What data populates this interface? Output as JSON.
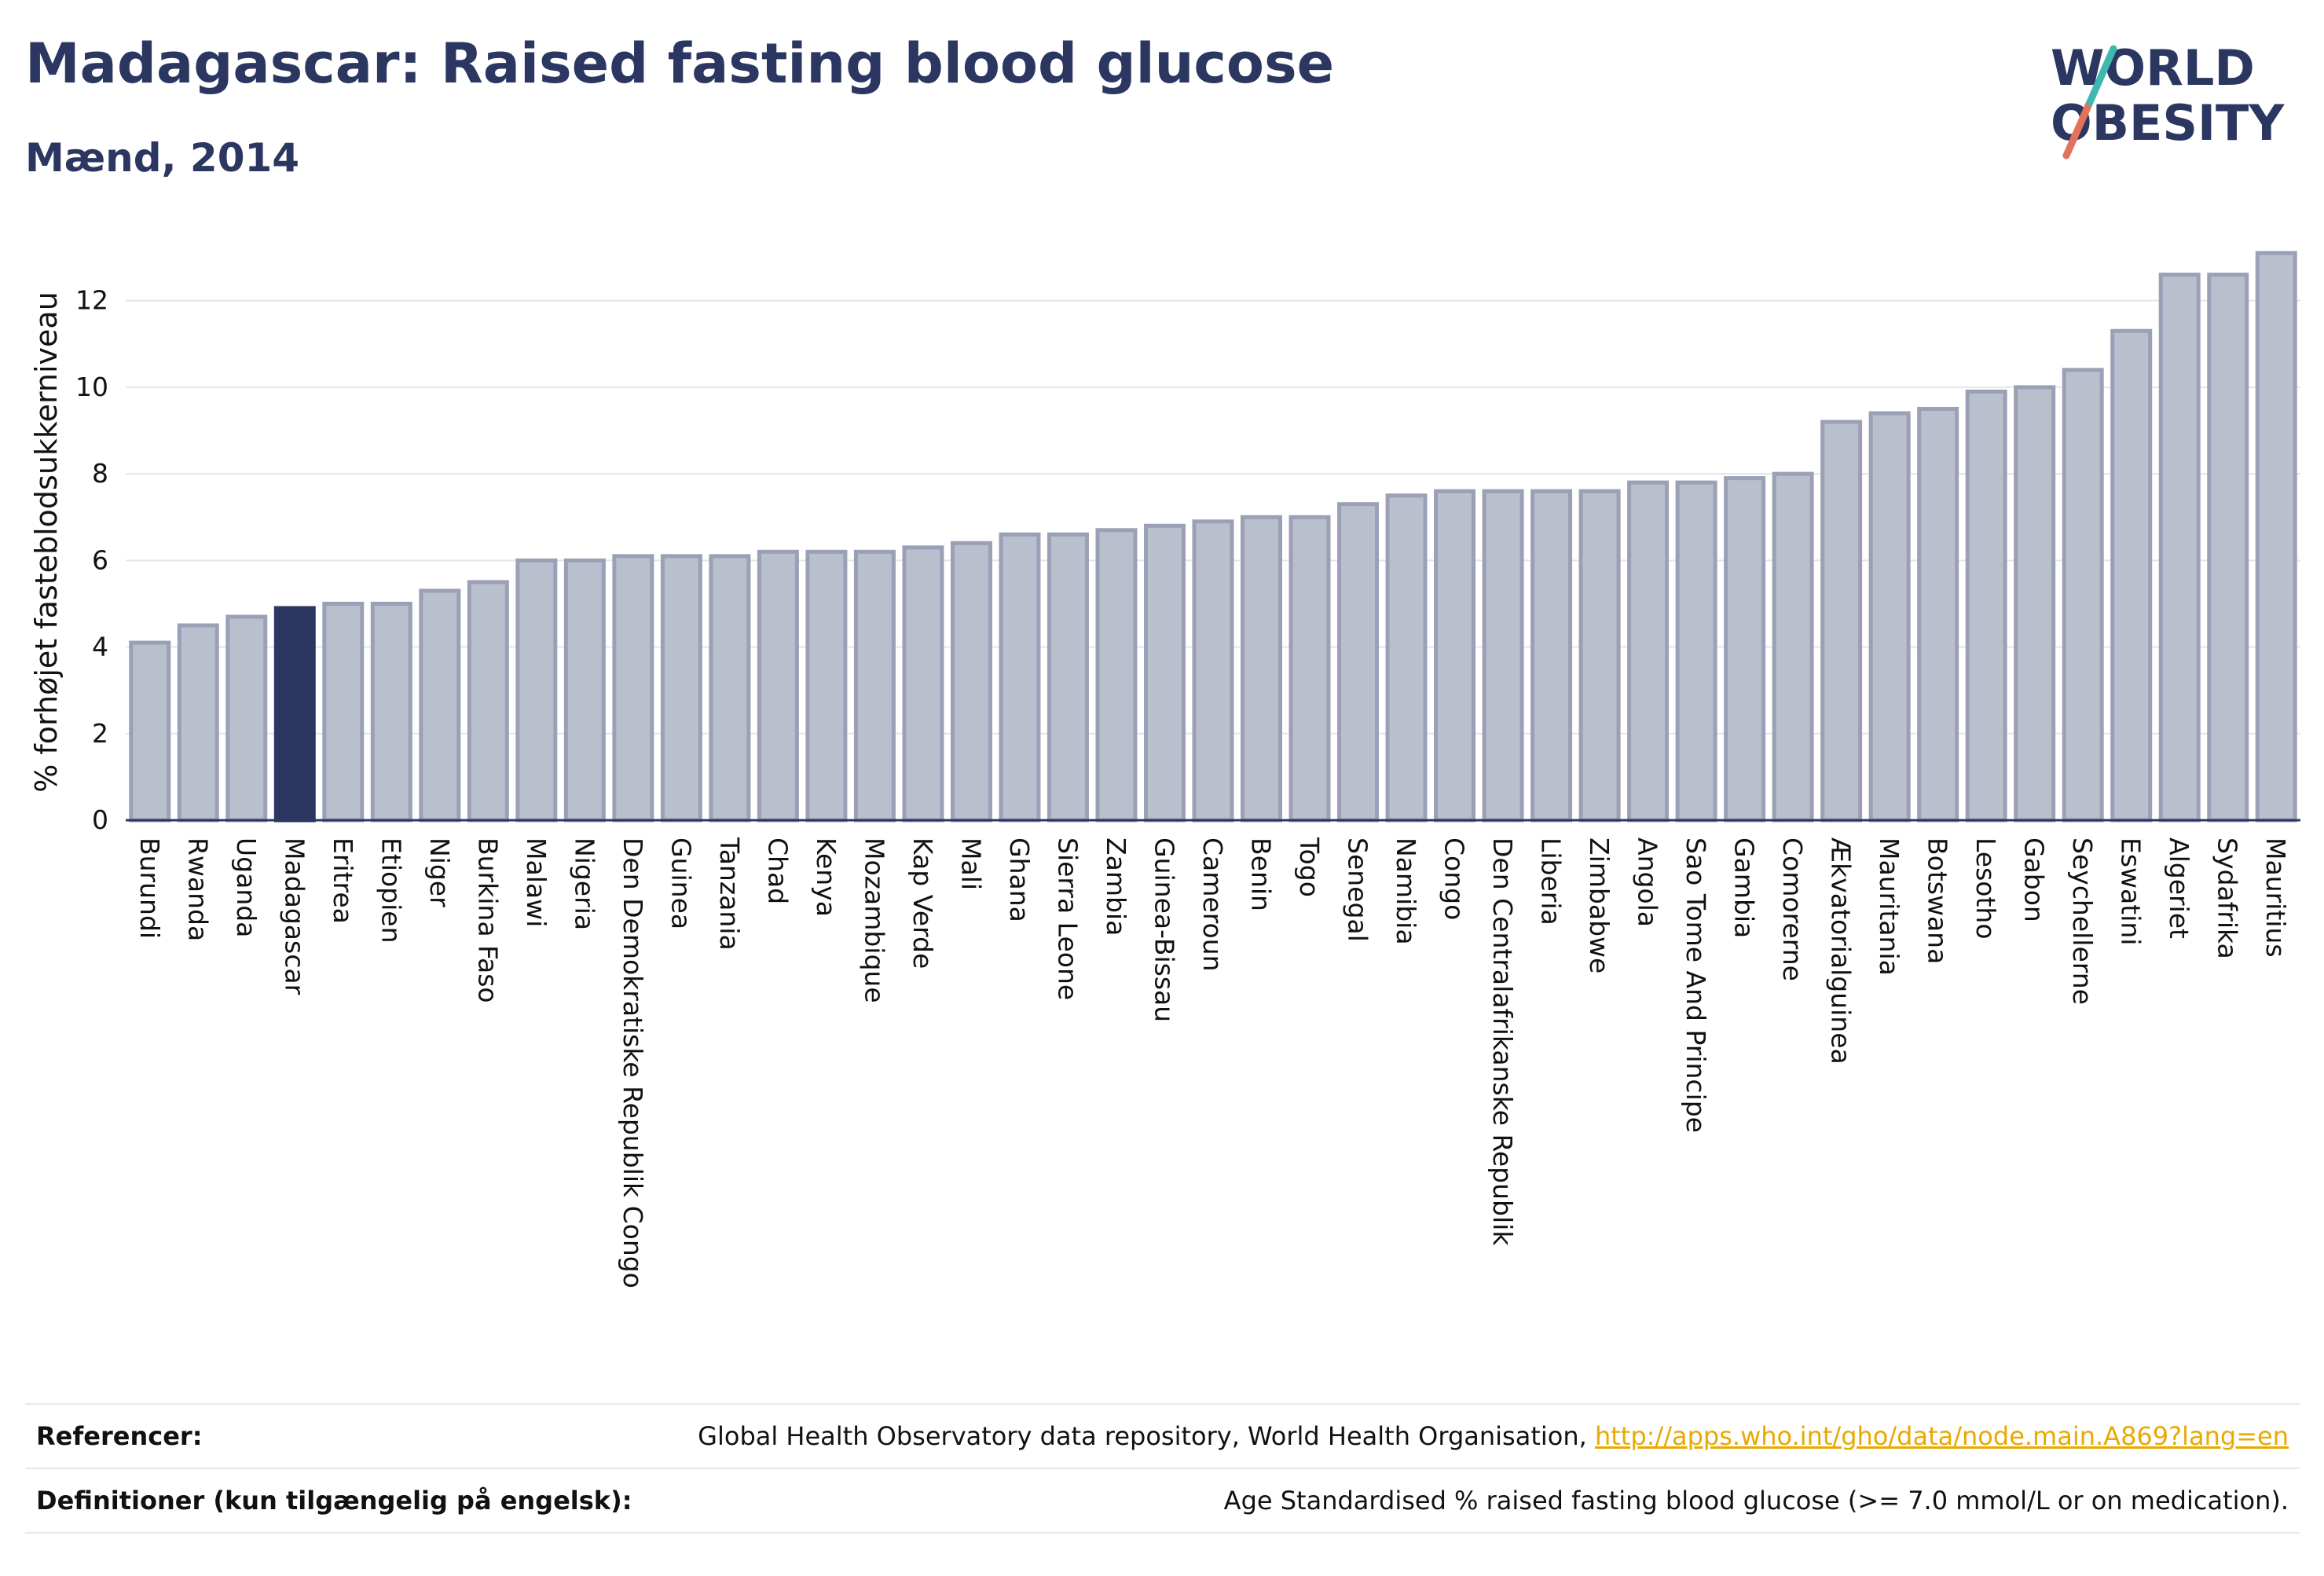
{
  "header": {
    "title": "Madagascar: Raised fasting blood glucose",
    "subtitle": "Mænd, 2014"
  },
  "logo": {
    "line1": "WORLD",
    "line2": "OBESITY"
  },
  "chart_data": {
    "type": "bar",
    "title": "Madagascar: Raised fasting blood glucose",
    "subtitle": "Mænd, 2014",
    "xlabel": "",
    "ylabel": "% forhøjet fasteblodsukkerniveau",
    "ylim": [
      0,
      13.5
    ],
    "yticks": [
      0,
      2,
      4,
      6,
      8,
      10,
      12
    ],
    "grid": true,
    "highlight": "Madagascar",
    "categories": [
      "Burundi",
      "Rwanda",
      "Uganda",
      "Madagascar",
      "Eritrea",
      "Etiopien",
      "Niger",
      "Burkina Faso",
      "Malawi",
      "Nigeria",
      "Den Demokratiske Republik Congo",
      "Guinea",
      "Tanzania",
      "Chad",
      "Kenya",
      "Mozambique",
      "Kap Verde",
      "Mali",
      "Ghana",
      "Sierra Leone",
      "Zambia",
      "Guinea-Bissau",
      "Cameroun",
      "Benin",
      "Togo",
      "Senegal",
      "Namibia",
      "Congo",
      "Den Centralafrikanske Republik",
      "Liberia",
      "Zimbabwe",
      "Angola",
      "Sao Tome And Principe",
      "Gambia",
      "Comorerne",
      "Ækvatorialguinea",
      "Mauritania",
      "Botswana",
      "Lesotho",
      "Gabon",
      "Seychellerne",
      "Eswatini",
      "Algeriet",
      "Sydafrika",
      "Mauritius"
    ],
    "values": [
      4.1,
      4.5,
      4.7,
      4.9,
      5.0,
      5.0,
      5.3,
      5.5,
      6.0,
      6.0,
      6.1,
      6.1,
      6.1,
      6.2,
      6.2,
      6.2,
      6.3,
      6.4,
      6.6,
      6.6,
      6.7,
      6.8,
      6.9,
      7.0,
      7.0,
      7.3,
      7.5,
      7.6,
      7.6,
      7.6,
      7.6,
      7.8,
      7.8,
      7.9,
      8.0,
      9.2,
      9.4,
      9.5,
      9.9,
      10.0,
      10.4,
      11.3,
      12.6,
      12.6,
      13.1
    ],
    "colors": {
      "default": "#b9bfcd",
      "default_border": "#9aa0b5",
      "highlight": "#2b3760"
    }
  },
  "footer": {
    "references_label": "Referencer:",
    "references_text": "Global Health Observatory data repository, World Health Organisation, ",
    "references_link": "http://apps.who.int/gho/data/node.main.A869?lang=en",
    "definitions_label": "Definitioner (kun tilgængelig på engelsk):",
    "definitions_text": "Age Standardised % raised fasting blood glucose (>= 7.0 mmol/L or on medication)."
  }
}
